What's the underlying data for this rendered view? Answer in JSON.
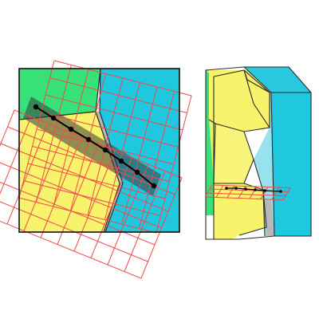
{
  "figure": {
    "panels": [
      {
        "name": "2d-cross-section-panel"
      },
      {
        "name": "3d-block-panel"
      }
    ],
    "region_colors": {
      "green": "#36e17a",
      "yellow": "#f7f36a",
      "cyan": "#1fc7df",
      "gray": "#b8b8b8"
    },
    "grid_color": "#ef4b4b",
    "band_color": "#3b3b3b",
    "path_color": "#000000",
    "outline_color": "#111111"
  }
}
